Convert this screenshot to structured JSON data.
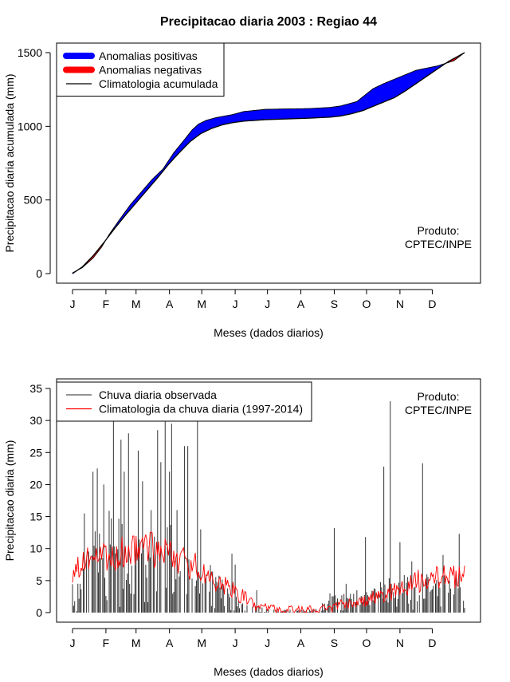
{
  "title": "Precipitacao diaria 2003 : Regiao 44",
  "chart_data": [
    {
      "type": "area",
      "id": "cumulative",
      "ylabel": "Precipitacao diaria acumulada (mm)",
      "xlabel": "Meses (dados diarios)",
      "month_labels": [
        "J",
        "F",
        "M",
        "A",
        "M",
        "J",
        "J",
        "A",
        "S",
        "O",
        "N",
        "D"
      ],
      "month_days": [
        1,
        32,
        60,
        91,
        121,
        152,
        182,
        213,
        244,
        274,
        305,
        335
      ],
      "xlim": [
        1,
        365
      ],
      "ylim": [
        0,
        1500
      ],
      "yticks": [
        0,
        500,
        1000,
        1500
      ],
      "legend": [
        {
          "label": "Anomalias positivas",
          "color": "#0000ff",
          "style": "thick"
        },
        {
          "label": "Anomalias negativas",
          "color": "#ff0000",
          "style": "thick"
        },
        {
          "label": "Climatologia acumulada",
          "color": "#000000",
          "style": "thin"
        }
      ],
      "legend_position": "top-left",
      "annotation": [
        "Produto:",
        "CPTEC/INPE"
      ],
      "annotation_position": "right-lower",
      "observed_cumulative": {
        "days": [
          1,
          10,
          20,
          28,
          35,
          45,
          55,
          65,
          75,
          85,
          95,
          105,
          112,
          118,
          125,
          135,
          150,
          160,
          180,
          200,
          220,
          240,
          250,
          265,
          280,
          290,
          300,
          320,
          340,
          355,
          365
        ],
        "values": [
          5,
          40,
          105,
          180,
          265,
          370,
          470,
          555,
          640,
          710,
          820,
          910,
          975,
          1015,
          1040,
          1060,
          1080,
          1100,
          1115,
          1118,
          1120,
          1128,
          1138,
          1168,
          1255,
          1290,
          1320,
          1380,
          1410,
          1445,
          1500
        ]
      },
      "climatology_cumulative": {
        "days": [
          1,
          10,
          20,
          30,
          40,
          50,
          60,
          70,
          80,
          90,
          100,
          110,
          120,
          130,
          140,
          150,
          160,
          180,
          200,
          220,
          240,
          250,
          260,
          270,
          280,
          290,
          300,
          310,
          320,
          330,
          340,
          350,
          360,
          365
        ],
        "values": [
          0,
          45,
          120,
          210,
          305,
          395,
          480,
          565,
          650,
          740,
          820,
          895,
          950,
          985,
          1010,
          1025,
          1035,
          1045,
          1050,
          1055,
          1062,
          1070,
          1085,
          1105,
          1135,
          1165,
          1195,
          1240,
          1290,
          1340,
          1390,
          1440,
          1480,
          1500
        ]
      }
    },
    {
      "type": "line",
      "id": "daily",
      "ylabel": "Precipitacao diaria (mm)",
      "xlabel": "Meses (dados diarios)",
      "month_labels": [
        "J",
        "F",
        "M",
        "A",
        "M",
        "J",
        "J",
        "A",
        "S",
        "O",
        "N",
        "D"
      ],
      "month_days": [
        1,
        32,
        60,
        91,
        121,
        152,
        182,
        213,
        244,
        274,
        305,
        335
      ],
      "xlim": [
        1,
        365
      ],
      "ylim": [
        0,
        35
      ],
      "yticks": [
        0,
        5,
        10,
        15,
        20,
        25,
        30,
        35
      ],
      "legend": [
        {
          "label": "Chuva diaria observada",
          "color": "#555555",
          "style": "thin"
        },
        {
          "label": "Climatologia da chuva diaria (1997-2014)",
          "color": "#ff0000",
          "style": "thin"
        }
      ],
      "legend_position": "top-left",
      "annotation": [
        "Produto:",
        "CPTEC/INPE"
      ],
      "annotation_position": "top-right",
      "observed_profile": [
        {
          "day": 1,
          "max": 6
        },
        {
          "day": 30,
          "max": 17
        },
        {
          "day": 60,
          "max": 12
        },
        {
          "day": 90,
          "max": 14
        },
        {
          "day": 120,
          "max": 10
        },
        {
          "day": 150,
          "max": 3
        },
        {
          "day": 165,
          "max": 1.5
        },
        {
          "day": 185,
          "max": 0.5
        },
        {
          "day": 225,
          "max": 0.5
        },
        {
          "day": 245,
          "max": 3
        },
        {
          "day": 275,
          "max": 4
        },
        {
          "day": 300,
          "max": 6
        },
        {
          "day": 365,
          "max": 6
        }
      ],
      "observed_peaks": [
        {
          "day": 12,
          "value": 15.5
        },
        {
          "day": 20,
          "value": 22
        },
        {
          "day": 24,
          "value": 22.5
        },
        {
          "day": 30,
          "value": 20
        },
        {
          "day": 37,
          "value": 14.7
        },
        {
          "day": 39,
          "value": 33
        },
        {
          "day": 46,
          "value": 27
        },
        {
          "day": 49,
          "value": 22
        },
        {
          "day": 53,
          "value": 28
        },
        {
          "day": 62,
          "value": 25.3
        },
        {
          "day": 66,
          "value": 20.5
        },
        {
          "day": 74,
          "value": 16
        },
        {
          "day": 80,
          "value": 28.5
        },
        {
          "day": 83,
          "value": 23.5
        },
        {
          "day": 87,
          "value": 32.5
        },
        {
          "day": 91,
          "value": 22
        },
        {
          "day": 93,
          "value": 29.5
        },
        {
          "day": 98,
          "value": 16
        },
        {
          "day": 105,
          "value": 26
        },
        {
          "day": 108,
          "value": 26
        },
        {
          "day": 117,
          "value": 31.5
        },
        {
          "day": 120,
          "value": 13
        },
        {
          "day": 149,
          "value": 9.2
        },
        {
          "day": 152,
          "value": 7.5
        },
        {
          "day": 172,
          "value": 3.5
        },
        {
          "day": 240,
          "value": 3
        },
        {
          "day": 244,
          "value": 13.2
        },
        {
          "day": 255,
          "value": 4.5
        },
        {
          "day": 273,
          "value": 11.8
        },
        {
          "day": 290,
          "value": 22.8
        },
        {
          "day": 296,
          "value": 33
        },
        {
          "day": 305,
          "value": 11
        },
        {
          "day": 316,
          "value": 8
        },
        {
          "day": 326,
          "value": 23.3
        },
        {
          "day": 345,
          "value": 9
        },
        {
          "day": 360,
          "value": 12.3
        }
      ],
      "climatology_profile": [
        {
          "day": 1,
          "value": 7
        },
        {
          "day": 20,
          "value": 8
        },
        {
          "day": 45,
          "value": 9.5
        },
        {
          "day": 70,
          "value": 10
        },
        {
          "day": 95,
          "value": 9
        },
        {
          "day": 115,
          "value": 7
        },
        {
          "day": 130,
          "value": 5
        },
        {
          "day": 150,
          "value": 3.5
        },
        {
          "day": 170,
          "value": 1.2
        },
        {
          "day": 190,
          "value": 0.6
        },
        {
          "day": 215,
          "value": 0.3
        },
        {
          "day": 240,
          "value": 0.6
        },
        {
          "day": 255,
          "value": 1.5
        },
        {
          "day": 275,
          "value": 2
        },
        {
          "day": 290,
          "value": 2.8
        },
        {
          "day": 305,
          "value": 3.8
        },
        {
          "day": 320,
          "value": 4.8
        },
        {
          "day": 340,
          "value": 5.5
        },
        {
          "day": 365,
          "value": 6
        }
      ]
    }
  ]
}
